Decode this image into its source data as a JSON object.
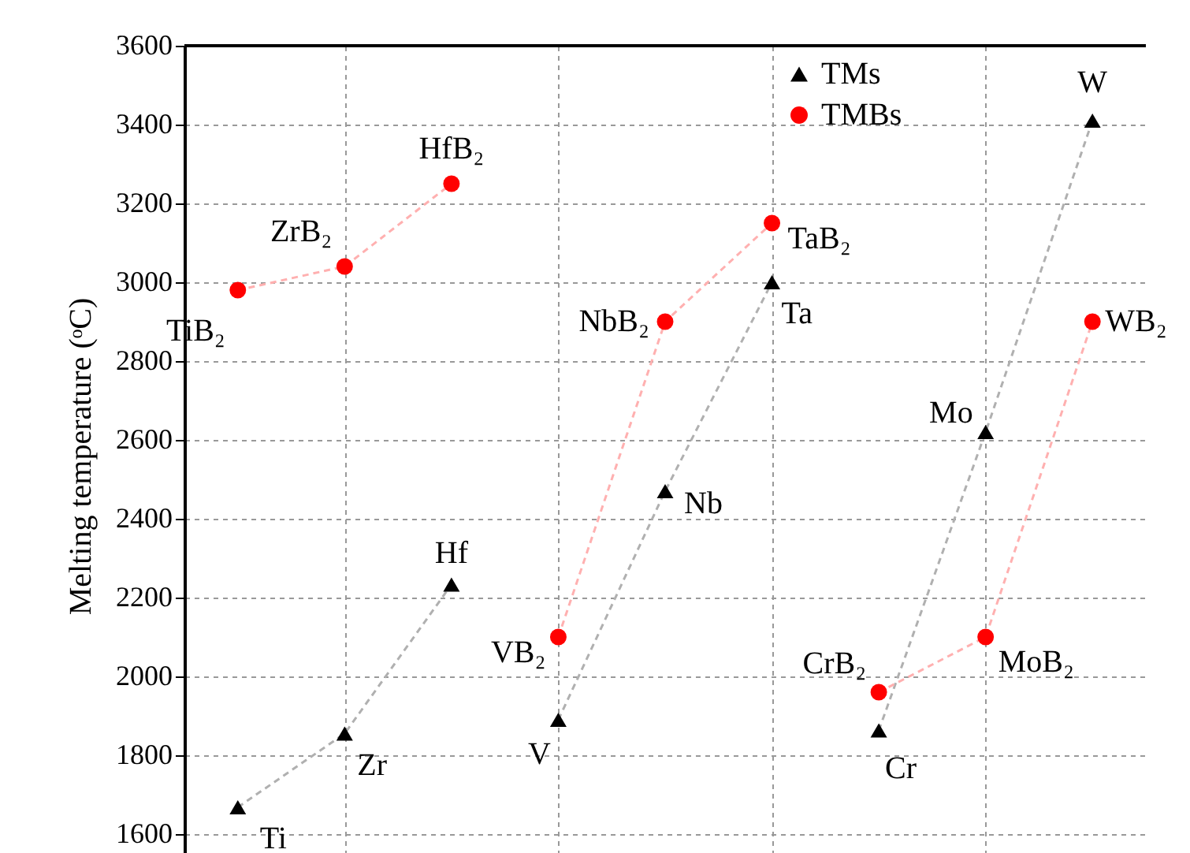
{
  "chart_data": {
    "type": "scatter",
    "ylabel": "Melting temperature (ᵒC)",
    "categories": [
      null,
      null,
      null,
      null,
      null,
      null,
      null,
      null,
      null
    ],
    "ylim": [
      1520,
      3600
    ],
    "yticks": [
      1600,
      1800,
      2000,
      2200,
      2400,
      2600,
      2800,
      3000,
      3200,
      3400,
      3600
    ],
    "grid": true,
    "legend": "top right",
    "tick_labels": "y",
    "series": [
      {
        "type": "line",
        "color": "#b0b0b0",
        "line_style": "dashed",
        "values": [
          1668,
          1855,
          2233,
          null,
          null,
          null,
          null,
          null,
          null
        ]
      },
      {
        "type": "line",
        "color": "#b0b0b0",
        "line_style": "dashed",
        "values": [
          null,
          null,
          null,
          1890,
          2470,
          3000,
          null,
          null,
          null
        ]
      },
      {
        "type": "line",
        "color": "#b0b0b0",
        "line_style": "dashed",
        "values": [
          null,
          null,
          null,
          null,
          null,
          null,
          1863,
          2620,
          3410
        ]
      },
      {
        "type": "line",
        "color": "#ffb0b0",
        "line_style": "dashed",
        "values": [
          2980,
          3040,
          3250,
          null,
          null,
          null,
          null,
          null,
          null
        ]
      },
      {
        "type": "line",
        "color": "#ffb0b0",
        "line_style": "dashed",
        "values": [
          null,
          null,
          null,
          2100,
          2900,
          3150,
          null,
          null,
          null
        ]
      },
      {
        "type": "line",
        "color": "#ffb0b0",
        "line_style": "dashed",
        "values": [
          null,
          null,
          null,
          null,
          null,
          null,
          1960,
          2100,
          2900
        ]
      },
      {
        "name": "TMs",
        "color": "#000000",
        "marker": "triangle",
        "values": [
          1668,
          1855,
          2233,
          1890,
          2470,
          3000,
          1863,
          2620,
          3410
        ],
        "value_labels": [
          "Ti",
          "Zr",
          "Hf",
          "V",
          "Nb",
          "Ta",
          "Cr",
          "Mo",
          "W"
        ]
      },
      {
        "name": "TMBs",
        "color": "#ff0000",
        "marker": "circle",
        "values": [
          2980,
          3040,
          3250,
          2100,
          2900,
          3150,
          1960,
          2100,
          2900
        ],
        "value_labels": [
          "TiB₂",
          "ZrB₂",
          "HfB₂",
          "VB₂",
          "NbB₂",
          "TaB₂",
          "CrB₂",
          "MoB₂",
          "WB₂"
        ]
      }
    ]
  }
}
